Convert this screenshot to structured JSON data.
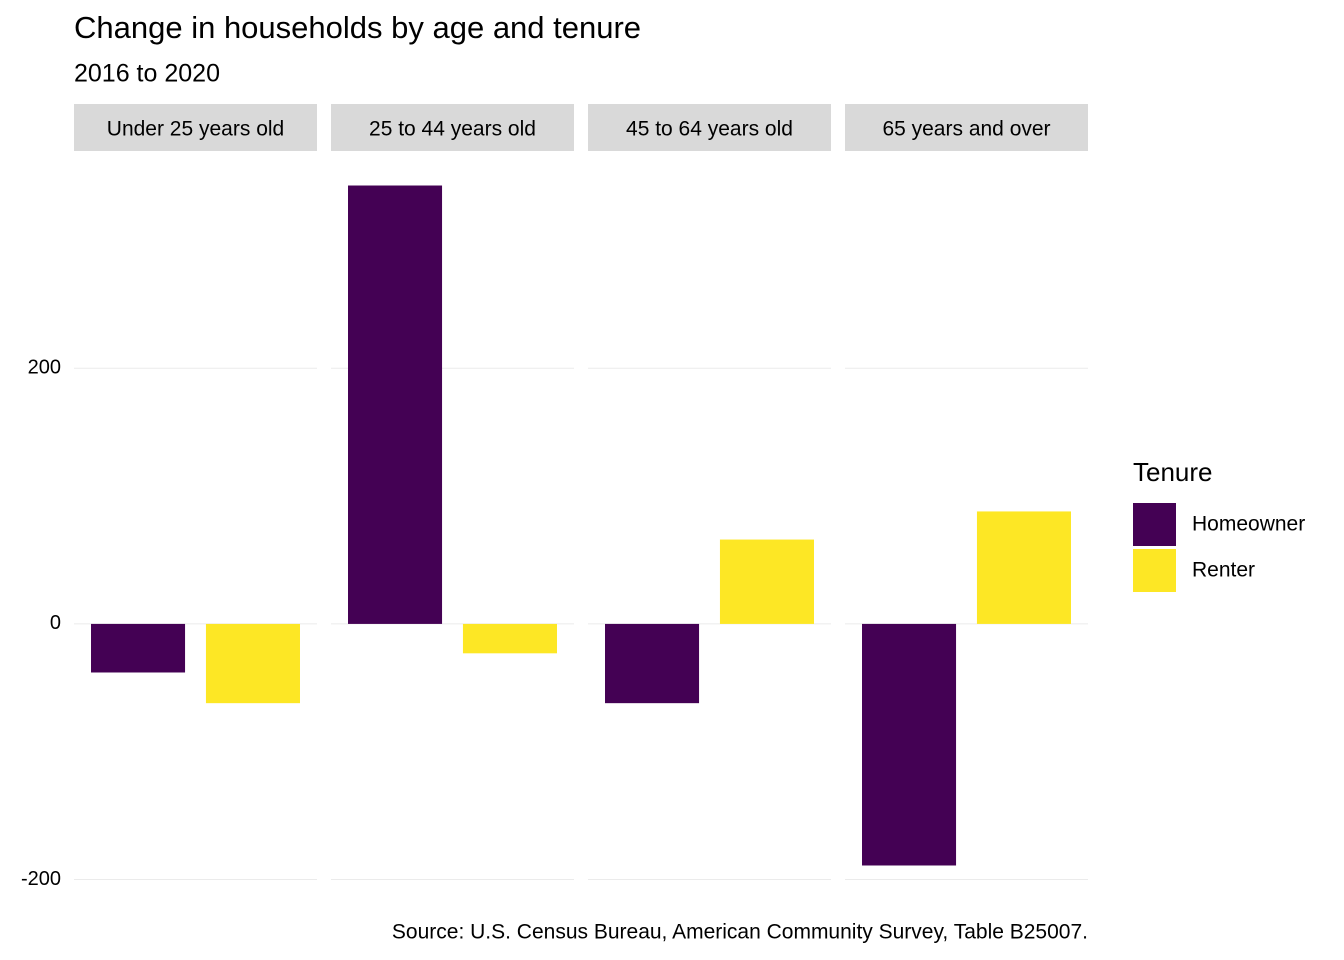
{
  "chart_data": {
    "type": "bar",
    "title": "Change in households by age and tenure",
    "subtitle": "2016 to 2020",
    "caption": "Source: U.S. Census Bureau, American Community Survey, Table B25007.",
    "categories": [
      "Under 25 years old",
      "25 to 44 years old",
      "45 to 64 years old",
      "65 years and over"
    ],
    "series": [
      {
        "name": "Homeowner",
        "color": "#440154",
        "values": [
          -38,
          343,
          -62,
          -189
        ]
      },
      {
        "name": "Renter",
        "color": "#fde725",
        "values": [
          -62,
          -23,
          66,
          88
        ]
      }
    ],
    "legend_title": "Tenure",
    "legend_position": "right",
    "ylim": [
      -216,
      370
    ],
    "yticks": [
      -200,
      0,
      200
    ],
    "grid": true
  }
}
